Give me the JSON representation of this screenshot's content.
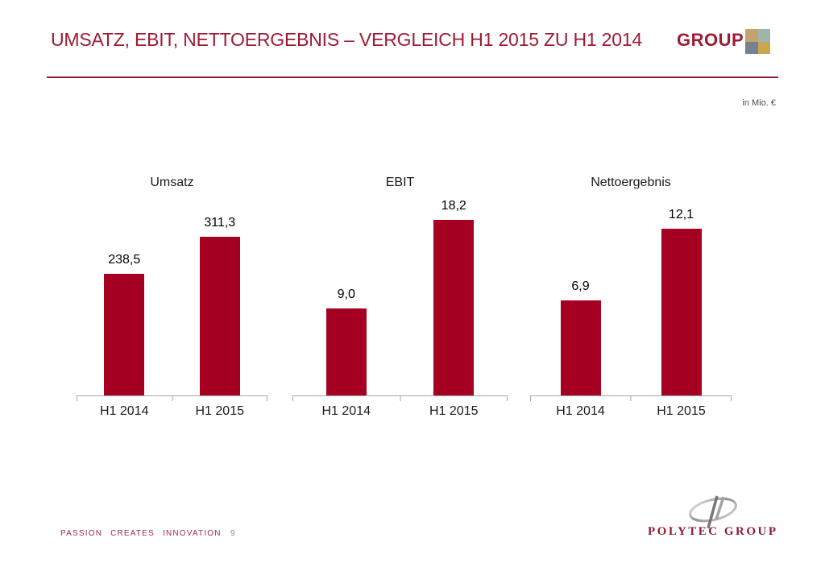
{
  "header": {
    "title": "UMSATZ, EBIT, NETTOERGEBNIS – VERGLEICH H1 2015 ZU H1 2014",
    "logo_text": "GROUP",
    "logo_squares": [
      "#c4a36b",
      "#9db5ab",
      "#78818f",
      "#caa64f"
    ]
  },
  "unit_note": "in Mio. €",
  "chart_data": [
    {
      "type": "bar",
      "title": "Umsatz",
      "categories": [
        "H1 2014",
        "H1 2015"
      ],
      "values": [
        238.5,
        311.3
      ],
      "labels": [
        "238,5",
        "311,3"
      ],
      "xlabel": "",
      "ylabel": "",
      "ylim": [
        0,
        380
      ],
      "grid": false,
      "legend": false,
      "bar_color": "#a50021"
    },
    {
      "type": "bar",
      "title": "EBIT",
      "categories": [
        "H1 2014",
        "H1 2015"
      ],
      "values": [
        9.0,
        18.2
      ],
      "labels": [
        "9,0",
        "18,2"
      ],
      "xlabel": "",
      "ylabel": "",
      "ylim": [
        0,
        20
      ],
      "grid": false,
      "legend": false,
      "bar_color": "#a50021"
    },
    {
      "type": "bar",
      "title": "Nettoergebnis",
      "categories": [
        "H1 2014",
        "H1 2015"
      ],
      "values": [
        6.9,
        12.1
      ],
      "labels": [
        "6,9",
        "12,1"
      ],
      "xlabel": "",
      "ylabel": "",
      "ylim": [
        0,
        14
      ],
      "grid": false,
      "legend": false,
      "bar_color": "#a50021"
    }
  ],
  "footer": {
    "tagline": "PASSION CREATES INNOVATION",
    "page_number": "9",
    "logo_text": "POLYTEC GROUP"
  },
  "colors": {
    "bar_red": "#a50021",
    "title_red": "#9e1b32",
    "rule_red": "#8c1d33",
    "axis_gray": "#a6a6a6",
    "footer_red": "#9e2b42",
    "logo_red": "#8e1d33"
  }
}
